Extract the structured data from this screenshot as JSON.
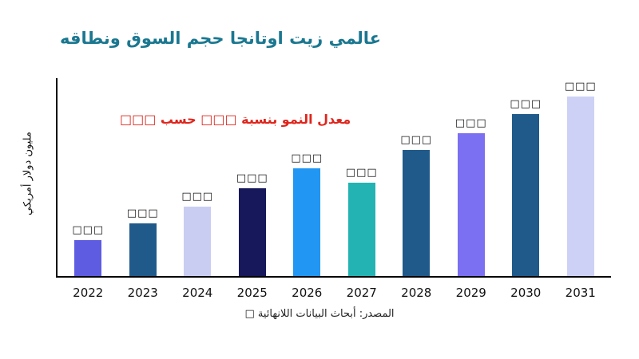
{
  "title": {
    "text": "عالمي زيت اوتانجا حجم السوق ونطاقه",
    "color": "#1a7790"
  },
  "annotation": {
    "text": "معدل النمو بنسبة □□□ حسب □□□",
    "color": "#e0251c"
  },
  "y_axis_label": "مليون دولار أمريكي",
  "source": "المصدر: أبحاث البيانات اللانهائية □",
  "chart_data": {
    "type": "bar",
    "title": "عالمي زيت اوتانجا حجم السوق ونطاقه",
    "xlabel": "",
    "ylabel": "مليون دولار أمريكي",
    "categories": [
      "2022",
      "2023",
      "2024",
      "2025",
      "2026",
      "2027",
      "2028",
      "2029",
      "2030",
      "2031"
    ],
    "values": [
      45,
      67,
      88,
      111,
      136,
      118,
      159,
      180,
      205,
      227
    ],
    "ylim": [
      0,
      250
    ],
    "grid": false,
    "legend": "none",
    "bar_labels": [
      "□□□",
      "□□□",
      "□□□",
      "□□□",
      "□□□",
      "□□□",
      "□□□",
      "□□□",
      "□□□",
      "□□□"
    ],
    "bar_colors": [
      "#5e5ce0",
      "#1f5a8a",
      "#c9cdf2",
      "#17175c",
      "#2196f3",
      "#23b3b3",
      "#1f5a8a",
      "#7b6ff2",
      "#1f5a8a",
      "#cdd1f5"
    ]
  }
}
